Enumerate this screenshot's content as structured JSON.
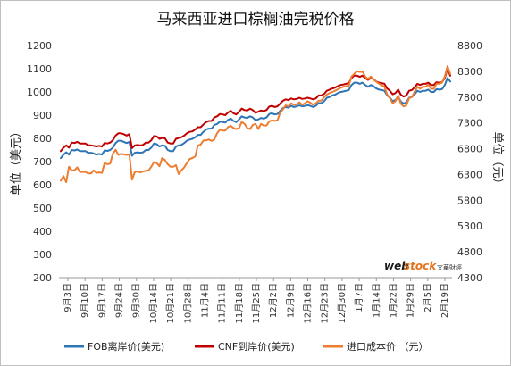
{
  "chart_data": {
    "type": "line",
    "title": "马来西亚进口棕榈油完税价格",
    "ylabel_left": "单位（美元）",
    "ylabel_right": "单位（元）",
    "y_left": {
      "min": 200,
      "max": 1200,
      "ticks": [
        200,
        300,
        400,
        500,
        600,
        700,
        800,
        900,
        1000,
        1100,
        1200
      ]
    },
    "y_right": {
      "min": 4300,
      "max": 8800,
      "ticks": [
        4300,
        4800,
        5300,
        5800,
        6300,
        6800,
        7300,
        7800,
        8300,
        8800
      ]
    },
    "x_ticks": [
      "9月3日",
      "9月10日",
      "9月17日",
      "9月24日",
      "9月30日",
      "10月14日",
      "10月21日",
      "10月28日",
      "11月4日",
      "11月11日",
      "11月18日",
      "11月25日",
      "12月2日",
      "12月9日",
      "12月16日",
      "12月23日",
      "12月30日",
      "1月7日",
      "1月14日",
      "1月22日",
      "1月29日",
      "2月5日",
      "2月19日"
    ],
    "grid": false,
    "legend_position": "bottom",
    "series": [
      {
        "name": "FOB离岸价(美元)",
        "axis": "left",
        "color": "#2e75b6",
        "values": [
          715,
          730,
          740,
          730,
          750,
          748,
          752,
          745,
          745,
          745,
          738,
          738,
          735,
          730,
          733,
          730,
          748,
          746,
          750,
          760,
          780,
          790,
          790,
          785,
          780,
          785,
          725,
          738,
          740,
          738,
          740,
          750,
          750,
          760,
          778,
          775,
          765,
          770,
          768,
          750,
          745,
          745,
          765,
          770,
          772,
          780,
          790,
          795,
          798,
          805,
          815,
          815,
          828,
          838,
          842,
          842,
          858,
          862,
          872,
          870,
          868,
          880,
          885,
          875,
          870,
          882,
          895,
          890,
          888,
          895,
          890,
          878,
          882,
          888,
          885,
          890,
          905,
          908,
          903,
          905,
          918,
          930,
          935,
          932,
          940,
          935,
          938,
          942,
          938,
          940,
          943,
          940,
          935,
          940,
          952,
          952,
          960,
          975,
          978,
          985,
          988,
          995,
          1000,
          1002,
          1005,
          1008,
          1030,
          1040,
          1040,
          1035,
          1040,
          1030,
          1022,
          1030,
          1025,
          1015,
          1010,
          1008,
          1005,
          985,
          975,
          960,
          965,
          980,
          958,
          950,
          955,
          975,
          978,
          990,
          1005,
          1000,
          1005,
          1005,
          1010,
          1000,
          1000,
          1012,
          1010,
          1012,
          1030,
          1060,
          1045
        ]
      },
      {
        "name": "CNF到岸价(美元)",
        "axis": "left",
        "color": "#c00000",
        "values": [
          745,
          760,
          770,
          760,
          782,
          780,
          785,
          778,
          778,
          778,
          770,
          770,
          768,
          765,
          768,
          765,
          780,
          778,
          782,
          792,
          812,
          822,
          822,
          818,
          812,
          818,
          758,
          770,
          772,
          770,
          772,
          782,
          782,
          792,
          810,
          808,
          798,
          802,
          800,
          782,
          778,
          778,
          798,
          802,
          805,
          812,
          822,
          828,
          830,
          838,
          848,
          848,
          860,
          870,
          875,
          875,
          890,
          895,
          905,
          903,
          900,
          912,
          918,
          908,
          903,
          915,
          928,
          922,
          920,
          928,
          922,
          910,
          915,
          920,
          918,
          922,
          937,
          940,
          935,
          938,
          950,
          962,
          968,
          965,
          972,
          968,
          970,
          975,
          970,
          972,
          975,
          972,
          968,
          972,
          985,
          985,
          992,
          1005,
          1010,
          1015,
          1018,
          1025,
          1030,
          1032,
          1035,
          1038,
          1060,
          1070,
          1070,
          1065,
          1070,
          1060,
          1052,
          1060,
          1055,
          1045,
          1040,
          1038,
          1035,
          1015,
          1005,
          990,
          995,
          1010,
          988,
          980,
          985,
          1005,
          1008,
          1020,
          1035,
          1030,
          1035,
          1035,
          1040,
          1030,
          1030,
          1042,
          1040,
          1042,
          1060,
          1100,
          1070
        ]
      },
      {
        "name": "进口成本价 （元）",
        "axis": "right",
        "color": "#ed7d31",
        "values": [
          6180,
          6270,
          6150,
          6450,
          6380,
          6380,
          6440,
          6350,
          6350,
          6350,
          6320,
          6320,
          6380,
          6330,
          6340,
          6330,
          6520,
          6500,
          6510,
          6700,
          6780,
          6680,
          6700,
          6690,
          6680,
          6690,
          6200,
          6350,
          6360,
          6340,
          6360,
          6370,
          6380,
          6450,
          6540,
          6520,
          6460,
          6620,
          6580,
          6500,
          6450,
          6450,
          6480,
          6310,
          6380,
          6440,
          6520,
          6600,
          6620,
          6650,
          6860,
          6880,
          6960,
          6960,
          6980,
          6950,
          6980,
          7100,
          7170,
          7150,
          7150,
          7220,
          7240,
          7200,
          7180,
          7200,
          7320,
          7280,
          7200,
          7180,
          7260,
          7280,
          7180,
          7280,
          7250,
          7250,
          7330,
          7350,
          7340,
          7350,
          7500,
          7560,
          7640,
          7620,
          7680,
          7650,
          7660,
          7700,
          7650,
          7680,
          7720,
          7690,
          7650,
          7680,
          7730,
          7730,
          7800,
          7850,
          7880,
          7900,
          7920,
          7950,
          7980,
          8000,
          8010,
          8020,
          8200,
          8250,
          8300,
          8290,
          8300,
          8200,
          8150,
          8200,
          8150,
          8100,
          8060,
          8030,
          8000,
          7850,
          7780,
          7680,
          7720,
          7830,
          7670,
          7620,
          7640,
          7780,
          7800,
          7900,
          8000,
          7960,
          8000,
          8000,
          8040,
          7960,
          7960,
          8060,
          8060,
          8080,
          8200,
          8400,
          8250
        ]
      }
    ]
  },
  "watermark": {
    "brand_part1": "web",
    "brand_part2": "stock",
    "brand_sub": "文華財經"
  }
}
